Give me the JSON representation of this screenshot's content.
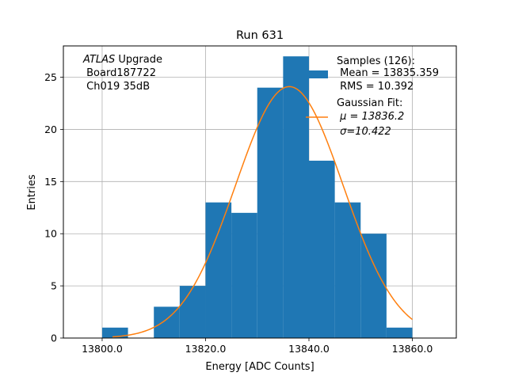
{
  "chart_data": {
    "type": "bar",
    "title": "Run 631",
    "xlabel": "Energy [ADC Counts]",
    "ylabel": "Entries",
    "xlim": [
      13792.5,
      13868.5
    ],
    "ylim": [
      0,
      28
    ],
    "grid": true,
    "x_ticks": [
      13800,
      13820,
      13840,
      13860
    ],
    "x_tick_labels": [
      "13800.0",
      "13820.0",
      "13840.0",
      "13860.0"
    ],
    "y_ticks": [
      0,
      5,
      10,
      15,
      20,
      25
    ],
    "y_tick_labels": [
      "0",
      "5",
      "10",
      "15",
      "20",
      "25"
    ],
    "histogram": {
      "bin_edges": [
        13800,
        13805,
        13810,
        13815,
        13820,
        13825,
        13830,
        13835,
        13840,
        13845,
        13850,
        13855,
        13860
      ],
      "counts": [
        1,
        0,
        3,
        5,
        13,
        12,
        24,
        27,
        17,
        13,
        10,
        1
      ],
      "color": "#1f77b4"
    },
    "fit": {
      "mu": 13836.2,
      "sigma": 10.422,
      "amplitude": 24.1,
      "x_start": 13802,
      "x_end": 13860,
      "color": "#ff7f0e"
    },
    "legend": {
      "placement": "top-right",
      "samples_lines": [
        "Samples (126):",
        " Mean = 13835.359",
        " RMS = 10.392"
      ],
      "fit_lines": [
        "Gaussian Fit:",
        " μ = 13836.2",
        " σ=10.422"
      ]
    },
    "annotation": {
      "italic": "ATLAS",
      "rest": " Upgrade",
      "lines": [
        " Board187722",
        " Ch019 35dB"
      ]
    }
  }
}
